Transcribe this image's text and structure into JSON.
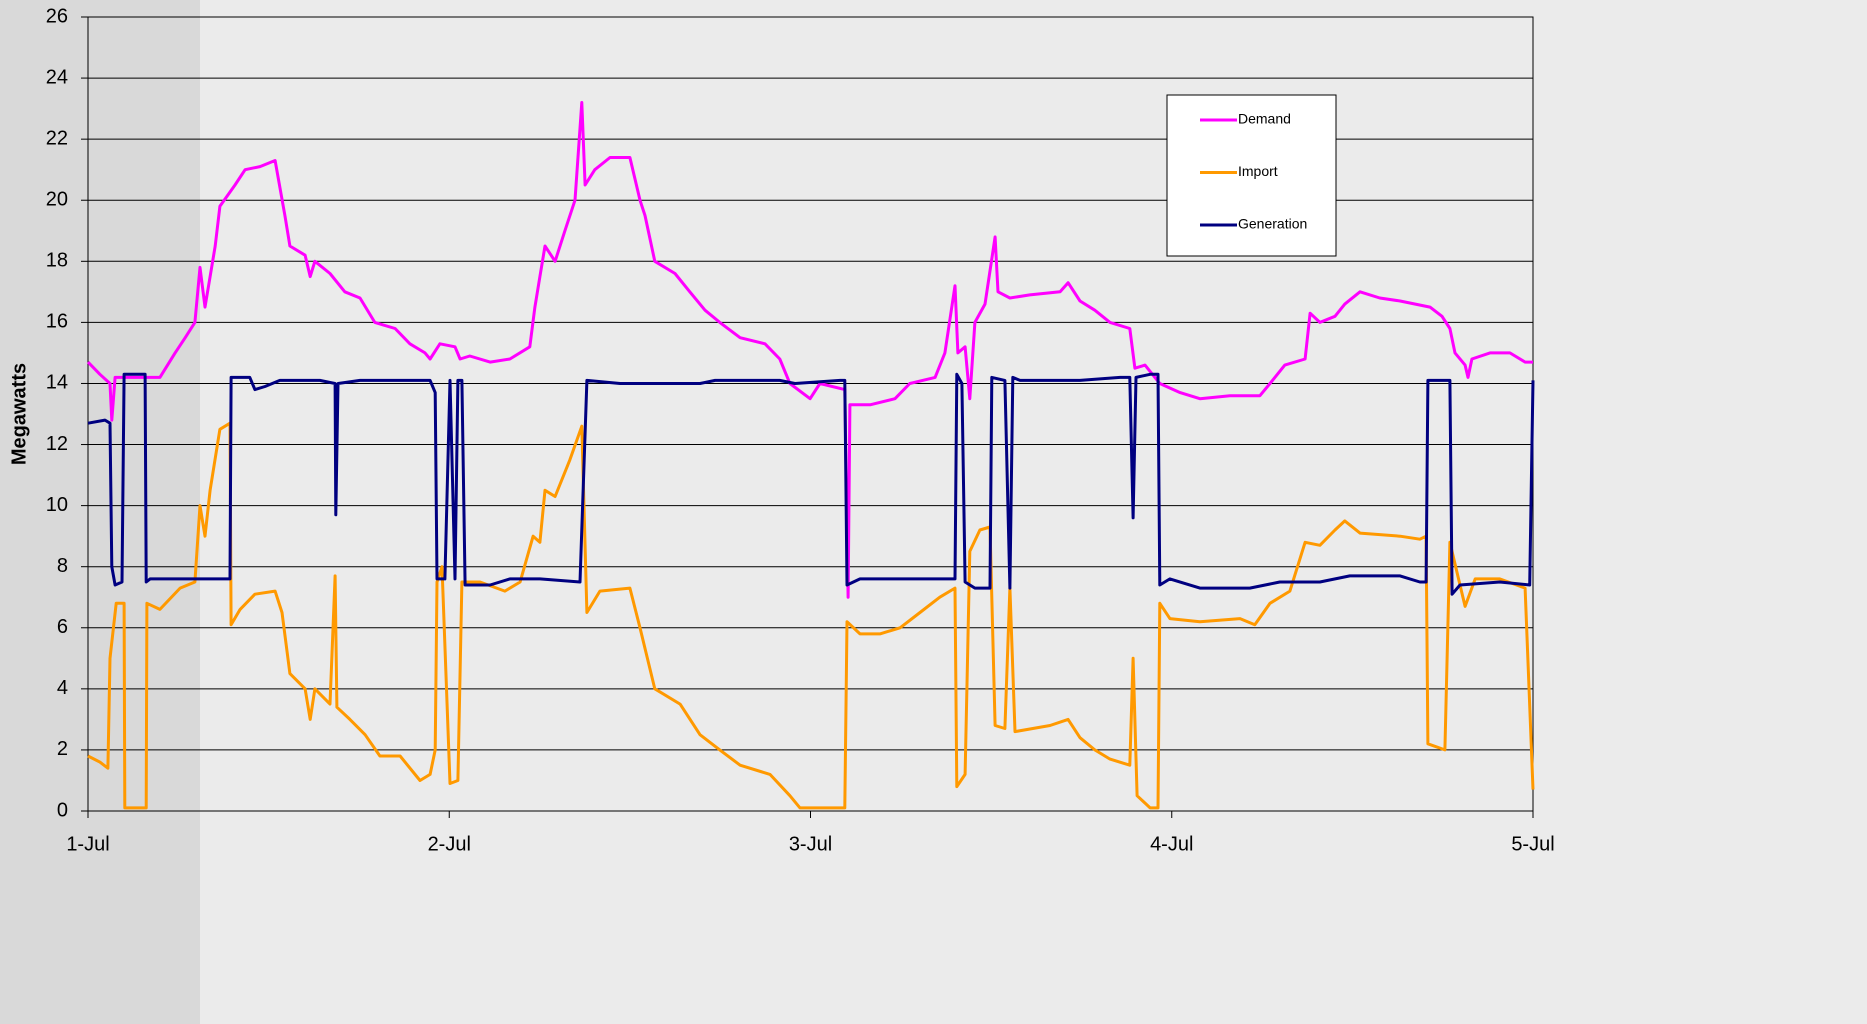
{
  "chart_data": {
    "type": "line",
    "y_label": "Megawatts",
    "xlim": [
      0,
      4
    ],
    "xticks": [
      {
        "value": 0,
        "label": "1-Jul"
      },
      {
        "value": 1,
        "label": "2-Jul"
      },
      {
        "value": 2,
        "label": "3-Jul"
      },
      {
        "value": 3,
        "label": "4-Jul"
      },
      {
        "value": 4,
        "label": "5-Jul"
      }
    ],
    "ylim": [
      0,
      26
    ],
    "yticks": [
      0,
      2,
      4,
      6,
      8,
      10,
      12,
      14,
      16,
      18,
      20,
      22,
      24,
      26
    ],
    "grid": true,
    "legend": "upper right",
    "series": [
      {
        "name": "Demand",
        "color": "#ff00ff",
        "x": [
          0,
          0.033,
          0.061,
          0.066,
          0.075,
          0.116,
          0.199,
          0.241,
          0.269,
          0.296,
          0.31,
          0.324,
          0.338,
          0.352,
          0.365,
          0.407,
          0.435,
          0.476,
          0.518,
          0.545,
          0.559,
          0.601,
          0.615,
          0.628,
          0.67,
          0.711,
          0.753,
          0.794,
          0.85,
          0.891,
          0.933,
          0.947,
          0.974,
          1.016,
          1.03,
          1.057,
          1.113,
          1.168,
          1.223,
          1.237,
          1.251,
          1.265,
          1.293,
          1.32,
          1.348,
          1.367,
          1.376,
          1.403,
          1.445,
          1.5,
          1.528,
          1.542,
          1.569,
          1.625,
          1.666,
          1.708,
          1.749,
          1.805,
          1.874,
          1.915,
          1.943,
          1.999,
          2.026,
          2.095,
          2.104,
          2.109,
          2.165,
          2.234,
          2.275,
          2.345,
          2.372,
          2.4,
          2.408,
          2.428,
          2.441,
          2.455,
          2.483,
          2.511,
          2.519,
          2.552,
          2.607,
          2.691,
          2.713,
          2.746,
          2.787,
          2.829,
          2.884,
          2.898,
          2.926,
          2.967,
          3.023,
          3.078,
          3.161,
          3.244,
          3.272,
          3.313,
          3.369,
          3.383,
          3.41,
          3.452,
          3.479,
          3.521,
          3.576,
          3.632,
          3.715,
          3.748,
          3.77,
          3.784,
          3.812,
          3.82,
          3.831,
          3.881,
          3.936,
          3.978,
          4
        ],
        "values": [
          14.7,
          14.3,
          14.0,
          12.8,
          14.2,
          14.2,
          14.2,
          15.0,
          15.5,
          16.0,
          17.8,
          16.5,
          17.5,
          18.5,
          19.8,
          20.5,
          21.0,
          21.1,
          21.3,
          19.5,
          18.5,
          18.2,
          17.5,
          18.0,
          17.6,
          17.0,
          16.8,
          16.0,
          15.8,
          15.3,
          15.0,
          14.8,
          15.3,
          15.2,
          14.8,
          14.9,
          14.7,
          14.8,
          15.2,
          16.5,
          17.5,
          18.5,
          18.0,
          19.0,
          20.0,
          23.2,
          20.5,
          21.0,
          21.4,
          21.4,
          20.0,
          19.5,
          18.0,
          17.6,
          17.0,
          16.4,
          16.0,
          15.5,
          15.3,
          14.8,
          14.0,
          13.5,
          14.0,
          13.8,
          7.0,
          13.3,
          13.3,
          13.5,
          14.0,
          14.2,
          15.0,
          17.2,
          15.0,
          15.2,
          13.5,
          16.0,
          16.6,
          18.8,
          17.0,
          16.8,
          16.9,
          17.0,
          17.3,
          16.7,
          16.4,
          16.0,
          15.8,
          14.5,
          14.6,
          14.0,
          13.7,
          13.5,
          13.6,
          13.6,
          14.0,
          14.6,
          14.8,
          16.3,
          16.0,
          16.2,
          16.6,
          17.0,
          16.8,
          16.7,
          16.5,
          16.2,
          15.8,
          15.0,
          14.6,
          14.2,
          14.8,
          15.0,
          15.0,
          14.7,
          14.7
        ]
      },
      {
        "name": "Import",
        "color": "#ff9900",
        "x": [
          0,
          0.033,
          0.055,
          0.061,
          0.078,
          0.1,
          0.102,
          0.144,
          0.161,
          0.163,
          0.199,
          0.255,
          0.296,
          0.31,
          0.324,
          0.338,
          0.365,
          0.393,
          0.396,
          0.421,
          0.462,
          0.518,
          0.537,
          0.559,
          0.601,
          0.615,
          0.628,
          0.67,
          0.684,
          0.689,
          0.725,
          0.767,
          0.808,
          0.864,
          0.919,
          0.947,
          0.961,
          0.966,
          0.98,
          1.002,
          1.024,
          1.035,
          1.085,
          1.154,
          1.196,
          1.232,
          1.251,
          1.265,
          1.293,
          1.334,
          1.367,
          1.381,
          1.417,
          1.5,
          1.528,
          1.569,
          1.639,
          1.694,
          1.749,
          1.805,
          1.888,
          1.943,
          1.971,
          2.054,
          2.095,
          2.101,
          2.137,
          2.192,
          2.248,
          2.303,
          2.358,
          2.4,
          2.405,
          2.428,
          2.441,
          2.469,
          2.497,
          2.511,
          2.538,
          2.552,
          2.566,
          2.663,
          2.713,
          2.746,
          2.787,
          2.829,
          2.884,
          2.893,
          2.904,
          2.94,
          2.962,
          2.967,
          2.995,
          3.078,
          3.189,
          3.23,
          3.272,
          3.327,
          3.369,
          3.41,
          3.452,
          3.479,
          3.521,
          3.632,
          3.687,
          3.704,
          3.709,
          3.756,
          3.77,
          3.798,
          3.812,
          3.84,
          3.908,
          3.978,
          4
        ],
        "values": [
          1.8,
          1.6,
          1.4,
          5.0,
          6.8,
          6.8,
          0.1,
          0.1,
          0.1,
          6.8,
          6.6,
          7.3,
          7.5,
          10.0,
          9.0,
          10.5,
          12.5,
          12.7,
          6.1,
          6.6,
          7.1,
          7.2,
          6.5,
          4.5,
          4.0,
          3.0,
          4.0,
          3.5,
          7.7,
          3.4,
          3.0,
          2.5,
          1.8,
          1.8,
          1.0,
          1.2,
          2.0,
          7.5,
          8.0,
          0.9,
          1.0,
          7.5,
          7.5,
          7.2,
          7.5,
          9.0,
          8.8,
          10.5,
          10.3,
          11.5,
          12.6,
          6.5,
          7.2,
          7.3,
          6.0,
          4.0,
          3.5,
          2.5,
          2.0,
          1.5,
          1.2,
          0.5,
          0.1,
          0.1,
          0.1,
          6.2,
          5.8,
          5.8,
          6.0,
          6.5,
          7.0,
          7.3,
          0.8,
          1.2,
          8.5,
          9.2,
          9.3,
          2.8,
          2.7,
          7.3,
          2.6,
          2.8,
          3.0,
          2.4,
          2.0,
          1.7,
          1.5,
          5.0,
          0.5,
          0.1,
          0.1,
          6.8,
          6.3,
          6.2,
          6.3,
          6.1,
          6.8,
          7.2,
          8.8,
          8.7,
          9.2,
          9.5,
          9.1,
          9.0,
          8.9,
          9.0,
          2.2,
          2.0,
          8.8,
          7.4,
          6.7,
          7.6,
          7.6,
          7.3,
          0.7
        ]
      },
      {
        "name": "Generation",
        "color": "#000080",
        "x": [
          0,
          0.047,
          0.061,
          0.066,
          0.075,
          0.094,
          0.1,
          0.144,
          0.158,
          0.161,
          0.172,
          0.227,
          0.31,
          0.393,
          0.396,
          0.448,
          0.462,
          0.49,
          0.531,
          0.642,
          0.684,
          0.686,
          0.692,
          0.753,
          0.864,
          0.947,
          0.961,
          0.966,
          0.988,
          1.002,
          1.016,
          1.024,
          1.035,
          1.044,
          1.113,
          1.168,
          1.251,
          1.362,
          1.381,
          1.473,
          1.583,
          1.694,
          1.736,
          1.915,
          1.957,
          2.082,
          2.095,
          2.101,
          2.137,
          2.248,
          2.358,
          2.4,
          2.405,
          2.419,
          2.428,
          2.455,
          2.497,
          2.502,
          2.538,
          2.552,
          2.56,
          2.58,
          2.746,
          2.857,
          2.884,
          2.893,
          2.901,
          2.94,
          2.962,
          2.967,
          2.995,
          3.078,
          3.216,
          3.299,
          3.41,
          3.493,
          3.632,
          3.687,
          3.704,
          3.709,
          3.742,
          3.77,
          3.776,
          3.798,
          3.908,
          3.991,
          4
        ],
        "values": [
          12.7,
          12.8,
          12.7,
          8.0,
          7.4,
          7.5,
          14.3,
          14.3,
          14.3,
          7.5,
          7.6,
          7.6,
          7.6,
          7.6,
          14.2,
          14.2,
          13.8,
          13.9,
          14.1,
          14.1,
          14.0,
          9.7,
          14.0,
          14.1,
          14.1,
          14.1,
          13.7,
          7.6,
          7.6,
          14.1,
          7.6,
          14.1,
          14.1,
          7.4,
          7.4,
          7.6,
          7.6,
          7.5,
          14.1,
          14.0,
          14.0,
          14.0,
          14.1,
          14.1,
          14.0,
          14.1,
          14.1,
          7.4,
          7.6,
          7.6,
          7.6,
          7.6,
          14.3,
          14.0,
          7.5,
          7.3,
          7.3,
          14.2,
          14.1,
          7.3,
          14.2,
          14.1,
          14.1,
          14.2,
          14.2,
          9.6,
          14.2,
          14.3,
          14.3,
          7.4,
          7.6,
          7.3,
          7.3,
          7.5,
          7.5,
          7.7,
          7.7,
          7.5,
          7.5,
          14.1,
          14.1,
          14.1,
          7.1,
          7.4,
          7.5,
          7.4,
          14.1
        ]
      }
    ]
  }
}
